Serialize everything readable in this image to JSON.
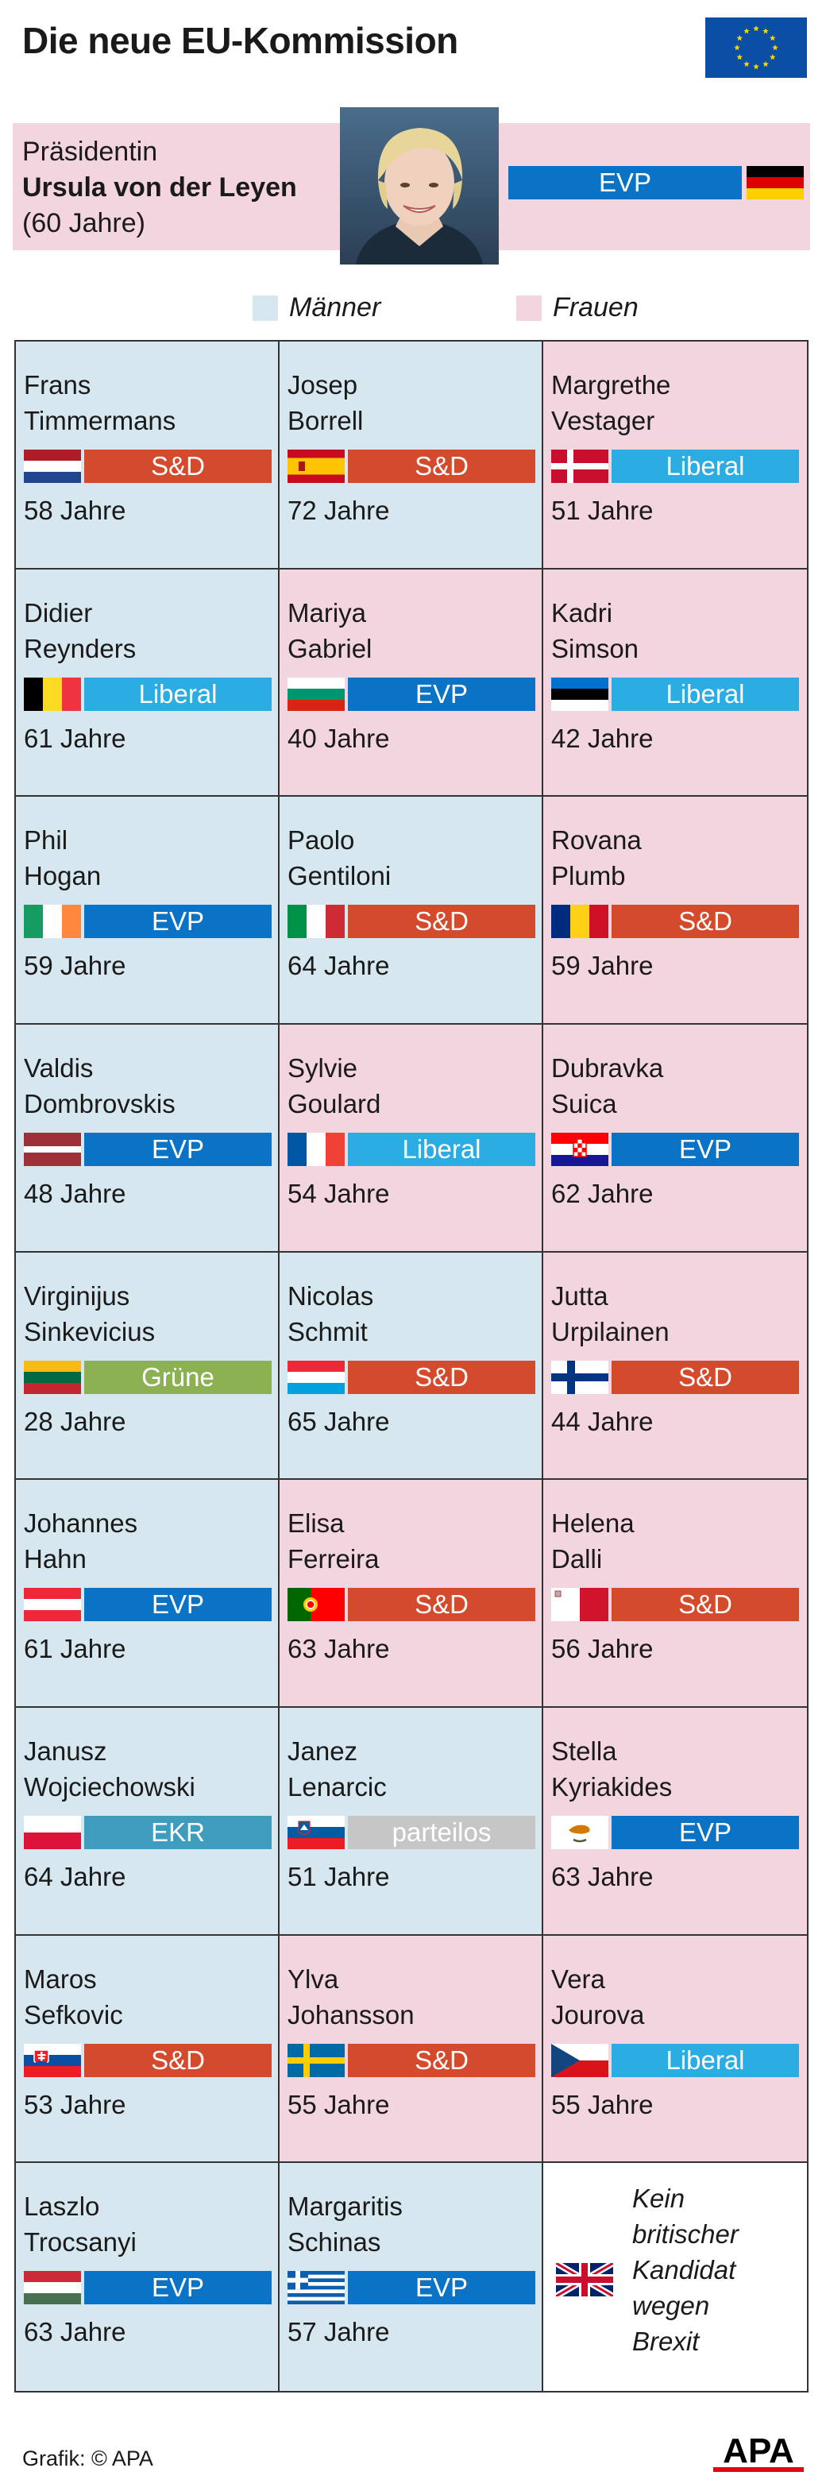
{
  "title": "Die neue EU-Kommission",
  "colors": {
    "male": "#d6e7ef",
    "female": "#f3d5df",
    "parties": {
      "S&D": "#d44a2c",
      "EVP": "#0a73c6",
      "Liberal": "#2bace2",
      "Grüne": "#8bb153",
      "EKR": "#3f9cbc",
      "parteilos": "#c6c6c6"
    }
  },
  "president": {
    "role": "Präsidentin",
    "name": "Ursula von der Leyen",
    "age": "(60 Jahre)",
    "party": "EVP",
    "flag": "germany"
  },
  "legend": {
    "men": "Männer",
    "women": "Frauen"
  },
  "commissioners": [
    {
      "first": "Frans",
      "last": "Timmermans",
      "party": "S&D",
      "age": "58 Jahre",
      "gender": "m",
      "flag": "netherlands"
    },
    {
      "first": "Josep",
      "last": "Borrell",
      "party": "S&D",
      "age": "72 Jahre",
      "gender": "m",
      "flag": "spain"
    },
    {
      "first": "Margrethe",
      "last": "Vestager",
      "party": "Liberal",
      "age": "51 Jahre",
      "gender": "w",
      "flag": "denmark"
    },
    {
      "first": "Didier",
      "last": "Reynders",
      "party": "Liberal",
      "age": "61 Jahre",
      "gender": "m",
      "flag": "belgium"
    },
    {
      "first": "Mariya",
      "last": "Gabriel",
      "party": "EVP",
      "age": "40 Jahre",
      "gender": "w",
      "flag": "bulgaria"
    },
    {
      "first": "Kadri",
      "last": "Simson",
      "party": "Liberal",
      "age": "42 Jahre",
      "gender": "w",
      "flag": "estonia"
    },
    {
      "first": "Phil",
      "last": "Hogan",
      "party": "EVP",
      "age": "59 Jahre",
      "gender": "m",
      "flag": "ireland"
    },
    {
      "first": "Paolo",
      "last": "Gentiloni",
      "party": "S&D",
      "age": "64 Jahre",
      "gender": "m",
      "flag": "italy"
    },
    {
      "first": "Rovana",
      "last": "Plumb",
      "party": "S&D",
      "age": "59 Jahre",
      "gender": "w",
      "flag": "romania"
    },
    {
      "first": "Valdis",
      "last": "Dombrovskis",
      "party": "EVP",
      "age": "48 Jahre",
      "gender": "m",
      "flag": "latvia"
    },
    {
      "first": "Sylvie",
      "last": "Goulard",
      "party": "Liberal",
      "age": "54 Jahre",
      "gender": "w",
      "flag": "france"
    },
    {
      "first": "Dubravka",
      "last": "Suica",
      "party": "EVP",
      "age": "62 Jahre",
      "gender": "w",
      "flag": "croatia"
    },
    {
      "first": "Virginijus",
      "last": "Sinkevicius",
      "party": "Grüne",
      "age": "28 Jahre",
      "gender": "m",
      "flag": "lithuania"
    },
    {
      "first": "Nicolas",
      "last": "Schmit",
      "party": "S&D",
      "age": "65 Jahre",
      "gender": "m",
      "flag": "luxembourg"
    },
    {
      "first": "Jutta",
      "last": "Urpilainen",
      "party": "S&D",
      "age": "44 Jahre",
      "gender": "w",
      "flag": "finland"
    },
    {
      "first": "Johannes",
      "last": "Hahn",
      "party": "EVP",
      "age": "61 Jahre",
      "gender": "m",
      "flag": "austria"
    },
    {
      "first": "Elisa",
      "last": "Ferreira",
      "party": "S&D",
      "age": "63 Jahre",
      "gender": "w",
      "flag": "portugal"
    },
    {
      "first": "Helena",
      "last": "Dalli",
      "party": "S&D",
      "age": "56 Jahre",
      "gender": "w",
      "flag": "malta"
    },
    {
      "first": "Janusz",
      "last": "Wojciechowski",
      "party": "EKR",
      "age": "64 Jahre",
      "gender": "m",
      "flag": "poland"
    },
    {
      "first": "Janez",
      "last": "Lenarcic",
      "party": "parteilos",
      "age": "51 Jahre",
      "gender": "m",
      "flag": "slovenia"
    },
    {
      "first": "Stella",
      "last": "Kyriakides",
      "party": "EVP",
      "age": "63 Jahre",
      "gender": "w",
      "flag": "cyprus"
    },
    {
      "first": "Maros",
      "last": "Sefkovic",
      "party": "S&D",
      "age": "53 Jahre",
      "gender": "m",
      "flag": "slovakia"
    },
    {
      "first": "Ylva",
      "last": "Johansson",
      "party": "S&D",
      "age": "55 Jahre",
      "gender": "w",
      "flag": "sweden"
    },
    {
      "first": "Vera",
      "last": "Jourova",
      "party": "Liberal",
      "age": "55 Jahre",
      "gender": "w",
      "flag": "czechia"
    },
    {
      "first": "Laszlo",
      "last": "Trocsanyi",
      "party": "EVP",
      "age": "63 Jahre",
      "gender": "m",
      "flag": "hungary"
    },
    {
      "first": "Margaritis",
      "last": "Schinas",
      "party": "EVP",
      "age": "57 Jahre",
      "gender": "m",
      "flag": "greece"
    }
  ],
  "uk_note": {
    "lines": [
      "Kein",
      "britischer",
      "Kandidat",
      "wegen",
      "Brexit"
    ],
    "flag": "united-kingdom"
  },
  "source": "Grafik: © APA",
  "logo": "APA"
}
